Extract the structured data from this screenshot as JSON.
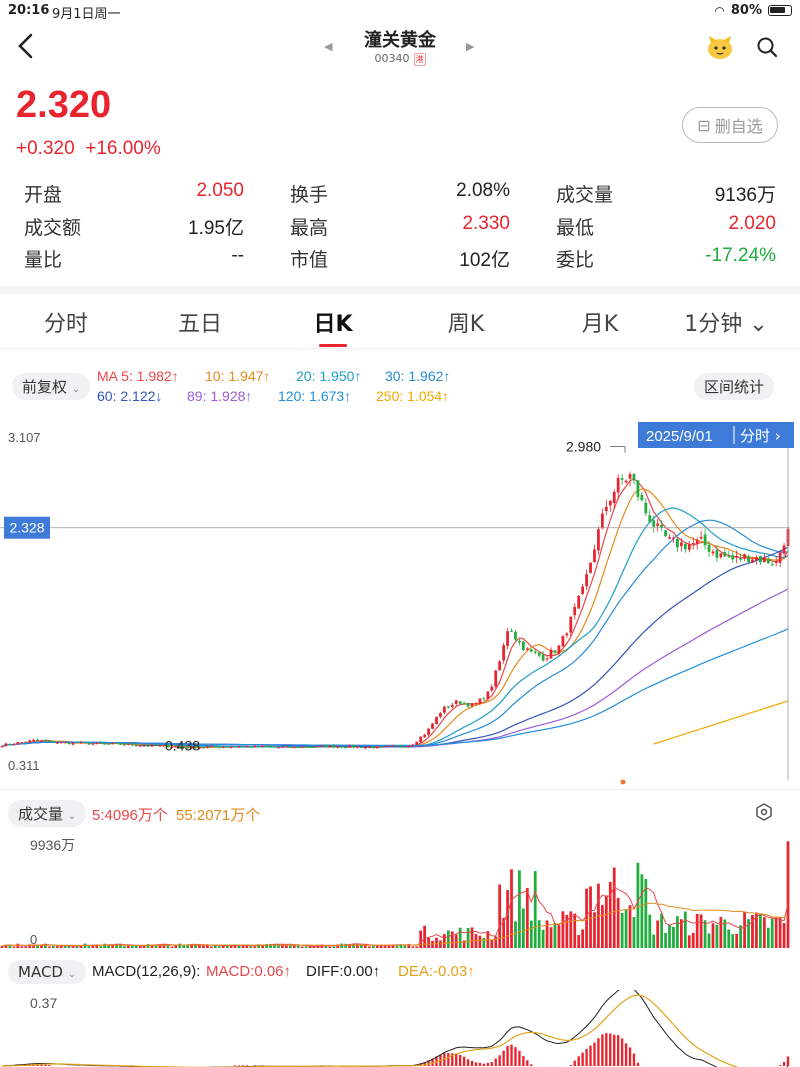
{
  "status_bar": {
    "time": "20:16",
    "date": "9月1日周一",
    "battery": "80%"
  },
  "header": {
    "title": "潼关黄金",
    "code": "00340",
    "market_badge": "港"
  },
  "quote": {
    "price": "2.320",
    "change": "+0.320",
    "change_pct": "+16.00%",
    "watch_button": "删自选",
    "stats": [
      {
        "label": "开盘",
        "value": "2.050",
        "color": "red"
      },
      {
        "label": "换手",
        "value": "2.08%",
        "color": "blk"
      },
      {
        "label": "成交量",
        "value": "9136万",
        "color": "blk"
      },
      {
        "label": "成交额",
        "value": "1.95亿",
        "color": "blk"
      },
      {
        "label": "最高",
        "value": "2.330",
        "color": "red"
      },
      {
        "label": "最低",
        "value": "2.020",
        "color": "red"
      },
      {
        "label": "量比",
        "value": "--",
        "color": "blk"
      },
      {
        "label": "市值",
        "value": "102亿",
        "color": "blk"
      },
      {
        "label": "委比",
        "value": "-17.24%",
        "color": "green"
      }
    ]
  },
  "tabs": [
    "分时",
    "五日",
    "日K",
    "周K",
    "月K",
    "1分钟"
  ],
  "active_tab": "日K",
  "ma_legend": {
    "adjust": "前复权",
    "range_button": "区间统计",
    "items": [
      {
        "text": "MA 5: 1.982↑",
        "color": "#e8474c"
      },
      {
        "text": "10: 1.947↑",
        "color": "#e38b1c"
      },
      {
        "text": "20: 1.950↑",
        "color": "#1e9fc9"
      },
      {
        "text": "30: 1.962↑",
        "color": "#2a8bd6"
      },
      {
        "text": "60: 2.122↓",
        "color": "#3355b8"
      },
      {
        "text": "89: 1.928↑",
        "color": "#9b5bd9"
      },
      {
        "text": "120: 1.673↑",
        "color": "#1f8fe0"
      },
      {
        "text": "250: 1.054↑",
        "color": "#f0a800"
      }
    ]
  },
  "chart_data": {
    "type": "candlestick",
    "price_axis": {
      "top": "3.107",
      "bottom": "0.311",
      "min": 0.311,
      "max": 3.107
    },
    "crosshair": {
      "price": "2.328",
      "date": "2025/9/01",
      "mode": "分时 ›"
    },
    "annotations": {
      "high": "2.980",
      "low": "0.438"
    },
    "high_value": 2.98,
    "low_value": 0.438,
    "last_close": 2.32,
    "volume": {
      "label": "成交量",
      "ma5": "5:4096万个",
      "ma55": "55:2071万个",
      "axis_top": "9936万",
      "axis_bottom": "0",
      "max": 9936
    },
    "macd": {
      "label": "MACD",
      "params": "MACD(12,26,9):",
      "macd": "MACD:0.06↑",
      "diff": "DIFF:0.00↑",
      "dea": "DEA:-0.03↑",
      "axis_top": "0.37"
    },
    "series": [
      {
        "name": "MA5",
        "color": "#e8474c"
      },
      {
        "name": "MA10",
        "color": "#e38b1c"
      },
      {
        "name": "MA20",
        "color": "#1e9fc9"
      },
      {
        "name": "MA30",
        "color": "#2a8bd6"
      },
      {
        "name": "MA60",
        "color": "#3355b8"
      },
      {
        "name": "MA89",
        "color": "#9b5bd9"
      },
      {
        "name": "MA120",
        "color": "#1f8fe0"
      },
      {
        "name": "MA250",
        "color": "#f0a800"
      }
    ],
    "close_curve": [
      [
        0,
        0.44
      ],
      [
        0.04,
        0.48
      ],
      [
        0.08,
        0.46
      ],
      [
        0.13,
        0.45
      ],
      [
        0.18,
        0.44
      ],
      [
        0.24,
        0.42
      ],
      [
        0.3,
        0.43
      ],
      [
        0.36,
        0.42
      ],
      [
        0.42,
        0.43
      ],
      [
        0.48,
        0.42
      ],
      [
        0.52,
        0.44
      ],
      [
        0.54,
        0.55
      ],
      [
        0.56,
        0.75
      ],
      [
        0.58,
        0.82
      ],
      [
        0.6,
        0.78
      ],
      [
        0.62,
        0.9
      ],
      [
        0.635,
        1.2
      ],
      [
        0.645,
        1.5
      ],
      [
        0.655,
        1.35
      ],
      [
        0.67,
        1.25
      ],
      [
        0.69,
        1.2
      ],
      [
        0.71,
        1.3
      ],
      [
        0.725,
        1.55
      ],
      [
        0.74,
        1.8
      ],
      [
        0.755,
        2.2
      ],
      [
        0.77,
        2.55
      ],
      [
        0.785,
        2.72
      ],
      [
        0.8,
        2.78
      ],
      [
        0.81,
        2.6
      ],
      [
        0.82,
        2.45
      ],
      [
        0.835,
        2.3
      ],
      [
        0.85,
        2.2
      ],
      [
        0.87,
        2.18
      ],
      [
        0.89,
        2.2
      ],
      [
        0.91,
        2.1
      ],
      [
        0.93,
        2.05
      ],
      [
        0.95,
        2.08
      ],
      [
        0.97,
        2.05
      ],
      [
        0.985,
        2.02
      ],
      [
        1,
        2.32
      ]
    ]
  }
}
